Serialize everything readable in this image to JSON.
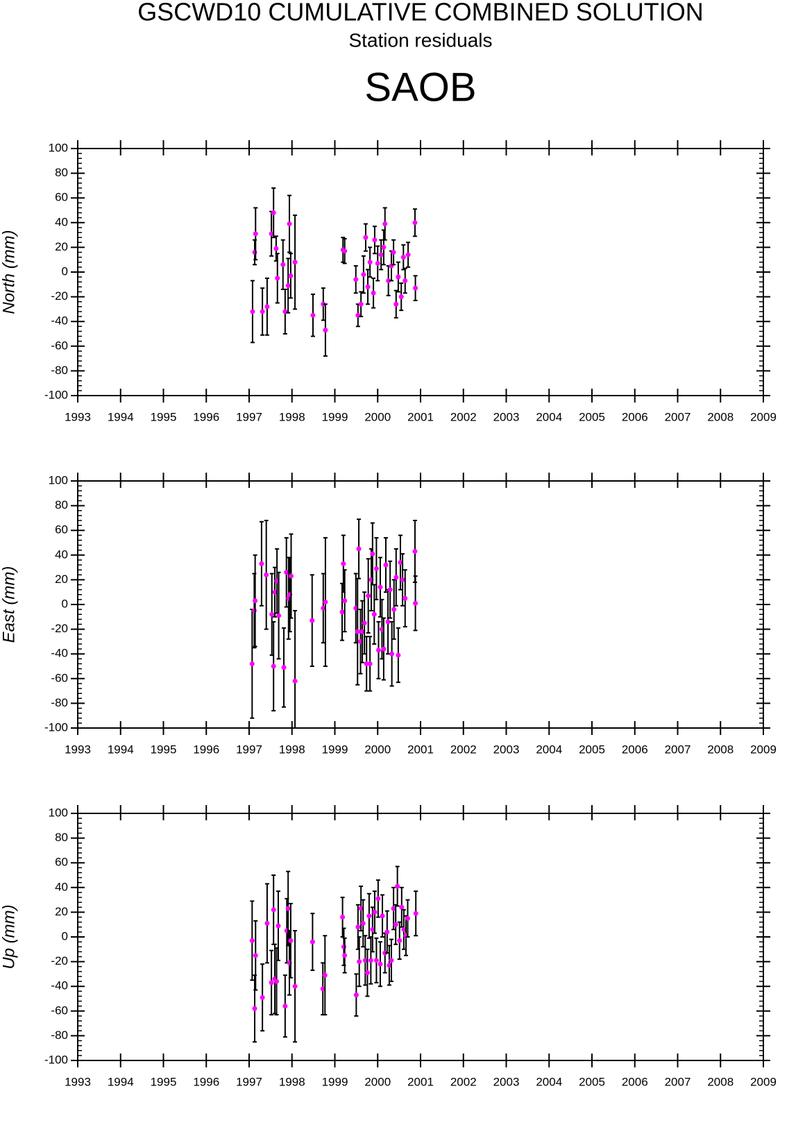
{
  "title": "GSCWD10 CUMULATIVE COMBINED SOLUTION",
  "subtitle": "Station residuals",
  "station": "SAOB",
  "chart_data": [
    {
      "type": "scatter",
      "y_label": "North (mm)",
      "color": "#ff00ff",
      "error_color": "#000000",
      "xlim": [
        1993,
        2009
      ],
      "xticks": [
        1993,
        1994,
        1995,
        1996,
        1997,
        1998,
        1999,
        2000,
        2001,
        2002,
        2003,
        2004,
        2005,
        2006,
        2007,
        2008,
        2009
      ],
      "ylim": [
        -100,
        100
      ],
      "yticks": [
        -100,
        -80,
        -60,
        -40,
        -20,
        0,
        20,
        40,
        60,
        80,
        100
      ],
      "x": [
        1997.08,
        1997.13,
        1997.15,
        1997.31,
        1997.42,
        1997.52,
        1997.57,
        1997.63,
        1997.66,
        1997.79,
        1997.84,
        1997.91,
        1997.94,
        1997.97,
        1998.07,
        1998.49,
        1998.73,
        1998.78,
        1999.19,
        1999.23,
        1999.49,
        1999.54,
        1999.61,
        1999.67,
        1999.72,
        1999.77,
        1999.82,
        1999.9,
        1999.93,
        2000.0,
        2000.08,
        2000.14,
        2000.17,
        2000.25,
        2000.32,
        2000.37,
        2000.43,
        2000.48,
        2000.55,
        2000.6,
        2000.64,
        2000.71,
        2000.87,
        2000.88
      ],
      "values": [
        -32,
        16,
        31,
        -32,
        -28,
        31,
        48,
        19,
        -5,
        6,
        -32,
        -11,
        39,
        -3,
        8,
        -35,
        -26,
        -47,
        18,
        17,
        -6,
        -35,
        -26,
        -2,
        28,
        -12,
        8,
        -17,
        26,
        7,
        14,
        20,
        39,
        -7,
        5,
        16,
        -26,
        -4,
        -20,
        12,
        -7,
        14,
        40,
        -13
      ],
      "errors": [
        25,
        10,
        21,
        19,
        23,
        18,
        20,
        10,
        20,
        20,
        18,
        22,
        23,
        18,
        38,
        17,
        13,
        21,
        10,
        10,
        11,
        9,
        10,
        15,
        11,
        14,
        12,
        12,
        11,
        14,
        12,
        14,
        13,
        12,
        12,
        10,
        11,
        12,
        11,
        10,
        10,
        10,
        11,
        10
      ]
    },
    {
      "type": "scatter",
      "y_label": "East (mm)",
      "color": "#ff00ff",
      "error_color": "#000000",
      "xlim": [
        1993,
        2009
      ],
      "xticks": [
        1993,
        1994,
        1995,
        1996,
        1997,
        1998,
        1999,
        2000,
        2001,
        2002,
        2003,
        2004,
        2005,
        2006,
        2007,
        2008,
        2009
      ],
      "ylim": [
        -100,
        100
      ],
      "yticks": [
        -100,
        -80,
        -60,
        -40,
        -20,
        0,
        20,
        40,
        60,
        80,
        100
      ],
      "x": [
        1997.07,
        1997.12,
        1997.14,
        1997.29,
        1997.4,
        1997.53,
        1997.57,
        1997.6,
        1997.65,
        1997.69,
        1997.81,
        1997.87,
        1997.92,
        1997.95,
        1997.98,
        1998.07,
        1998.47,
        1998.73,
        1998.78,
        1999.17,
        1999.2,
        1999.23,
        1999.49,
        1999.53,
        1999.56,
        1999.6,
        1999.64,
        1999.69,
        1999.74,
        1999.78,
        1999.82,
        1999.85,
        1999.88,
        1999.92,
        1999.97,
        2000.02,
        2000.06,
        2000.1,
        2000.14,
        2000.19,
        2000.24,
        2000.29,
        2000.33,
        2000.38,
        2000.43,
        2000.48,
        2000.53,
        2000.58,
        2000.64,
        2000.87,
        2000.88
      ],
      "values": [
        -48,
        -5,
        3,
        33,
        24,
        -8,
        -50,
        10,
        19,
        -9,
        -51,
        26,
        5,
        8,
        23,
        -62,
        -13,
        -3,
        2,
        -6,
        33,
        3,
        -3,
        -22,
        45,
        -30,
        -22,
        -15,
        -48,
        7,
        -48,
        20,
        41,
        -8,
        29,
        -37,
        14,
        -20,
        -36,
        32,
        -14,
        12,
        -40,
        -4,
        22,
        -41,
        34,
        20,
        5,
        43,
        1
      ],
      "errors": [
        44,
        30,
        37,
        34,
        44,
        33,
        36,
        20,
        26,
        35,
        32,
        28,
        33,
        30,
        34,
        57,
        37,
        28,
        52,
        23,
        23,
        25,
        28,
        43,
        24,
        26,
        25,
        25,
        22,
        30,
        22,
        25,
        25,
        24,
        25,
        23,
        24,
        24,
        25,
        22,
        26,
        23,
        26,
        24,
        23,
        22,
        22,
        21,
        23,
        25,
        22
      ]
    },
    {
      "type": "scatter",
      "y_label": "Up (mm)",
      "color": "#ff00ff",
      "error_color": "#000000",
      "xlim": [
        1993,
        2009
      ],
      "xticks": [
        1993,
        1994,
        1995,
        1996,
        1997,
        1998,
        1999,
        2000,
        2001,
        2002,
        2003,
        2004,
        2005,
        2006,
        2007,
        2008,
        2009
      ],
      "ylim": [
        -100,
        100
      ],
      "yticks": [
        -100,
        -80,
        -60,
        -40,
        -20,
        0,
        20,
        40,
        60,
        80,
        100
      ],
      "x": [
        1997.07,
        1997.13,
        1997.15,
        1997.31,
        1997.42,
        1997.52,
        1997.57,
        1997.6,
        1997.64,
        1997.68,
        1997.84,
        1997.88,
        1997.91,
        1997.94,
        1997.97,
        1998.07,
        1998.48,
        1998.72,
        1998.77,
        1999.18,
        1999.21,
        1999.23,
        1999.5,
        1999.54,
        1999.57,
        1999.61,
        1999.66,
        1999.71,
        1999.76,
        1999.8,
        1999.84,
        1999.88,
        1999.93,
        1999.97,
        2000.01,
        2000.06,
        2000.11,
        2000.17,
        2000.22,
        2000.27,
        2000.32,
        2000.37,
        2000.42,
        2000.46,
        2000.51,
        2000.56,
        2000.61,
        2000.66,
        2000.7,
        2000.89
      ],
      "values": [
        -3,
        -58,
        -15,
        -49,
        11,
        -37,
        22,
        -34,
        -36,
        9,
        -56,
        5,
        23,
        -21,
        -3,
        -40,
        -4,
        -42,
        -31,
        16,
        -8,
        -15,
        -47,
        8,
        -20,
        23,
        11,
        -19,
        -29,
        17,
        -19,
        6,
        20,
        -19,
        31,
        -22,
        17,
        -13,
        4,
        -23,
        -19,
        23,
        10,
        41,
        -3,
        24,
        6,
        1,
        15,
        19
      ],
      "errors": [
        32,
        27,
        28,
        27,
        32,
        26,
        28,
        28,
        27,
        28,
        25,
        26,
        30,
        26,
        30,
        45,
        23,
        21,
        32,
        16,
        15,
        14,
        17,
        18,
        20,
        18,
        19,
        20,
        19,
        18,
        19,
        18,
        17,
        18,
        15,
        18,
        17,
        16,
        17,
        16,
        17,
        17,
        16,
        16,
        15,
        16,
        16,
        16,
        15,
        18
      ]
    }
  ]
}
